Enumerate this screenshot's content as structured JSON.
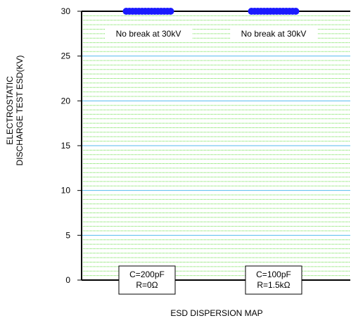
{
  "chart_data": {
    "type": "scatter",
    "title": "",
    "xlabel": "ESD DISPERSION MAP",
    "ylabel_lines": [
      "ELECTROSTATIC",
      "DISCHARGE TEST ESD(KV)"
    ],
    "ylim": [
      0,
      30
    ],
    "yticks": [
      "0",
      "5",
      "10",
      "15",
      "20",
      "25",
      "30"
    ],
    "grid": true,
    "minor_grid_step": 1,
    "major_grid_step": 5,
    "groups": [
      {
        "condition_lines": [
          "C=200pF",
          "R=0Ω"
        ],
        "annotation": "No break at 30kV",
        "point_count": 15,
        "value": 30
      },
      {
        "condition_lines": [
          "C=100pF",
          "R=1.5kΩ"
        ],
        "annotation": "No break at 30kV",
        "point_count": 15,
        "value": 30
      }
    ],
    "colors": {
      "background": "#ffffff",
      "minor_grid": "#66dd44",
      "major_grid": "#55bbee",
      "marker": "#1a1aff",
      "axis": "#000000"
    }
  }
}
